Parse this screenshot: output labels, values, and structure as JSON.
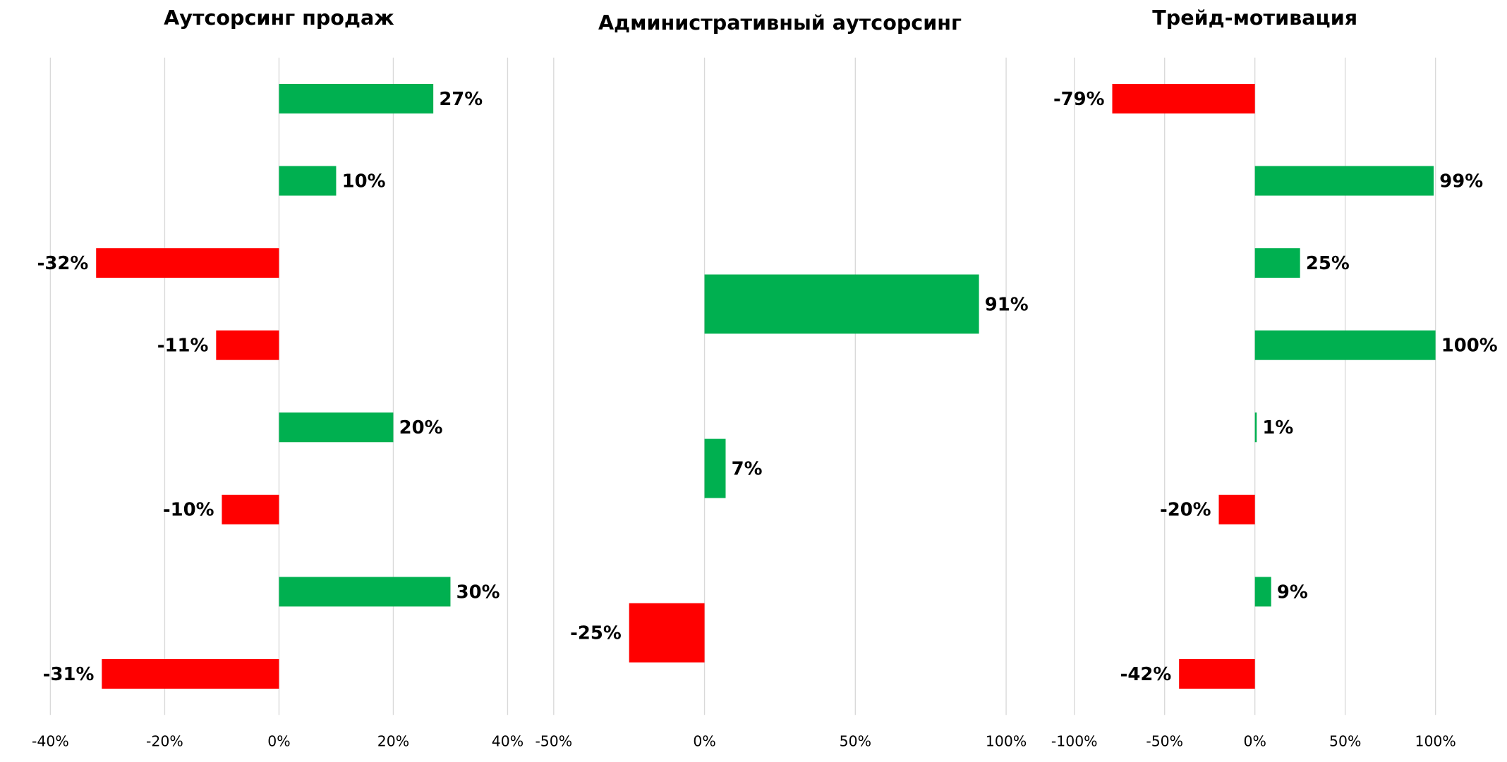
{
  "chart_data": [
    {
      "type": "barh",
      "title": "Аутсорсинг продаж",
      "categories": [
        null,
        null,
        null,
        null,
        null,
        null,
        null,
        null
      ],
      "values": [
        27,
        10,
        -32,
        -11,
        20,
        -10,
        30,
        -31
      ],
      "value_labels": [
        "27%",
        "10%",
        "-32%",
        "-11%",
        "20%",
        "-10%",
        "30%",
        "-31%"
      ],
      "positive_color": "#00b050",
      "negative_color": "#ff0000",
      "xlim": [
        -40,
        40
      ],
      "xticks": [
        {
          "value": -40,
          "label": "-40%"
        },
        {
          "value": -20,
          "label": "-20%"
        },
        {
          "value": 0,
          "label": "0%"
        },
        {
          "value": 20,
          "label": "20%"
        },
        {
          "value": 40,
          "label": "40%"
        }
      ],
      "grid": true
    },
    {
      "type": "barh",
      "title": "Административный аутсорсинг",
      "categories": [
        null,
        null,
        null,
        null
      ],
      "values": [
        null,
        91,
        7,
        -25
      ],
      "value_labels": [
        null,
        "91%",
        "7%",
        "-25%"
      ],
      "positive_color": "#00b050",
      "negative_color": "#ff0000",
      "xlim": [
        -50,
        100
      ],
      "xticks": [
        {
          "value": -50,
          "label": "-50%"
        },
        {
          "value": 0,
          "label": "0%"
        },
        {
          "value": 50,
          "label": "50%"
        },
        {
          "value": 100,
          "label": "100%"
        }
      ],
      "grid": true
    },
    {
      "type": "barh",
      "title": "Трейд-мотивация",
      "categories": [
        null,
        null,
        null,
        null,
        null,
        null,
        null,
        null
      ],
      "values": [
        -79,
        99,
        25,
        100,
        1,
        -20,
        9,
        -42
      ],
      "value_labels": [
        "-79%",
        "99%",
        "25%",
        "100%",
        "1%",
        "-20%",
        "9%",
        "-42%"
      ],
      "positive_color": "#00b050",
      "negative_color": "#ff0000",
      "xlim": [
        -100,
        100
      ],
      "xticks": [
        {
          "value": -100,
          "label": "-100%"
        },
        {
          "value": -50,
          "label": "-50%"
        },
        {
          "value": 0,
          "label": "0%"
        },
        {
          "value": 50,
          "label": "50%"
        },
        {
          "value": 100,
          "label": "100%"
        }
      ],
      "grid": true
    }
  ]
}
